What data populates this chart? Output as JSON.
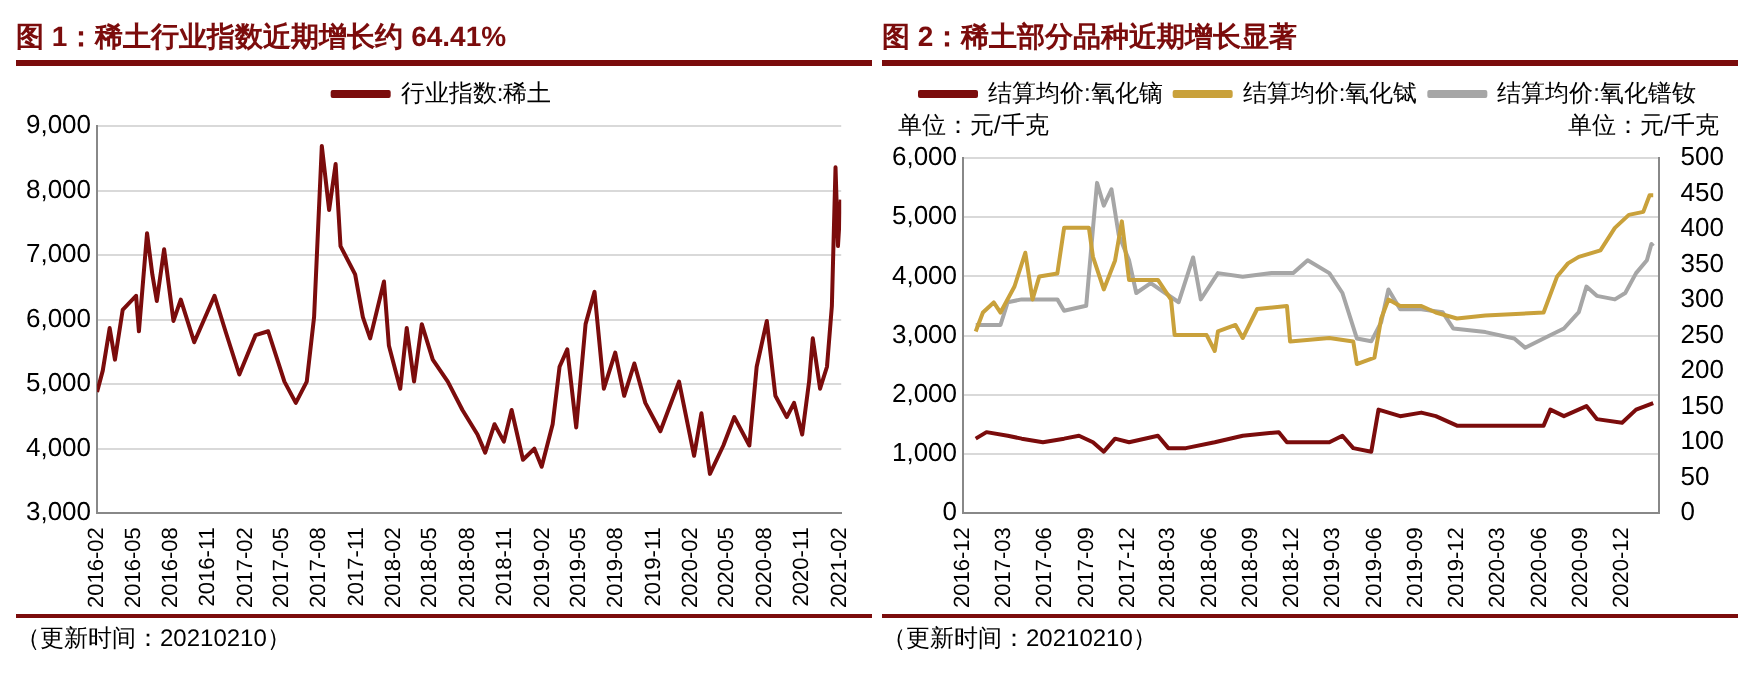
{
  "chart_data": [
    {
      "type": "line",
      "title": "图 1：稀土行业指数近期增长约 64.41%",
      "legend": "top",
      "grid": "y",
      "marker": "none",
      "annotations": [
        "（更新时间：20210210）"
      ],
      "xlim": [
        "2016-02-01",
        "2021-02-05"
      ],
      "xticks": [
        "2016-02",
        "2016-05",
        "2016-08",
        "2016-11",
        "2017-02",
        "2017-05",
        "2017-08",
        "2017-11",
        "2018-02",
        "2018-05",
        "2018-08",
        "2018-11",
        "2019-02",
        "2019-05",
        "2019-08",
        "2019-11",
        "2020-02",
        "2020-05",
        "2020-08",
        "2020-11",
        "2021-02"
      ],
      "ylim": [
        3000,
        9000
      ],
      "yticks": [
        {
          "value": 3000,
          "label": "3,000"
        },
        {
          "value": 4000,
          "label": "4,000"
        },
        {
          "value": 5000,
          "label": "5,000"
        },
        {
          "value": 6000,
          "label": "6,000"
        },
        {
          "value": 7000,
          "label": "7,000"
        },
        {
          "value": 8000,
          "label": "8,000"
        },
        {
          "value": 9000,
          "label": "9,000"
        }
      ],
      "series": [
        {
          "name": "行业指数:稀土",
          "color": "#7b0c0c",
          "x": [
            "2016-02-01",
            "2016-02-15",
            "2016-03-03",
            "2016-03-16",
            "2016-04-04",
            "2016-05-07",
            "2016-05-14",
            "2016-06-03",
            "2016-06-16",
            "2016-06-27",
            "2016-07-15",
            "2016-08-07",
            "2016-08-25",
            "2016-09-27",
            "2016-11-16",
            "2016-12-13",
            "2017-01-16",
            "2017-02-25",
            "2017-03-28",
            "2017-05-07",
            "2017-06-04",
            "2017-07-01",
            "2017-07-19",
            "2017-08-07",
            "2017-08-25",
            "2017-09-10",
            "2017-09-22",
            "2017-10-28",
            "2017-11-16",
            "2017-12-04",
            "2018-01-07",
            "2018-01-19",
            "2018-02-16",
            "2018-03-04",
            "2018-03-22",
            "2018-04-10",
            "2018-05-07",
            "2018-06-13",
            "2018-07-19",
            "2018-08-25",
            "2018-09-13",
            "2018-10-06",
            "2018-10-29",
            "2018-11-17",
            "2018-12-15",
            "2019-01-12",
            "2019-01-30",
            "2019-02-26",
            "2019-03-15",
            "2019-04-03",
            "2019-04-25",
            "2019-05-18",
            "2019-06-09",
            "2019-07-02",
            "2019-07-30",
            "2019-08-21",
            "2019-09-15",
            "2019-10-12",
            "2019-11-18",
            "2020-01-03",
            "2020-02-09",
            "2020-02-27",
            "2020-03-19",
            "2020-04-21",
            "2020-05-18",
            "2020-06-24",
            "2020-07-12",
            "2020-08-06",
            "2020-08-27",
            "2020-09-24",
            "2020-10-12",
            "2020-11-01",
            "2020-11-18",
            "2020-11-27",
            "2020-12-15",
            "2021-01-01",
            "2021-01-13",
            "2021-01-22",
            "2021-01-28",
            "2021-02-04"
          ],
          "values": [
            4880,
            5210,
            5870,
            5380,
            6150,
            6370,
            5820,
            7340,
            6700,
            6290,
            7090,
            5980,
            6310,
            5650,
            6370,
            5820,
            5150,
            5760,
            5820,
            5040,
            4710,
            5040,
            6040,
            8690,
            7700,
            8410,
            7140,
            6700,
            6040,
            5710,
            6590,
            5600,
            4930,
            5870,
            5040,
            5930,
            5380,
            5040,
            4600,
            4220,
            3940,
            4380,
            4110,
            4600,
            3830,
            4000,
            3720,
            4380,
            5270,
            5540,
            4330,
            5930,
            6430,
            4930,
            5490,
            4820,
            5320,
            4710,
            4270,
            5040,
            3890,
            4550,
            3610,
            4050,
            4490,
            4050,
            5270,
            5980,
            4820,
            4490,
            4710,
            4220,
            5040,
            5710,
            4930,
            5270,
            6210,
            8360,
            7140,
            7860
          ]
        }
      ]
    },
    {
      "type": "line",
      "title": "图 2：稀土部分品种近期增长显著",
      "legend": "top",
      "grid": "y",
      "marker": "none",
      "annotations": [
        "（更新时间：20210210）"
      ],
      "ylabel": "单位：元/千克",
      "y2label": "单位：元/千克",
      "xlim": [
        "2016-12-01",
        "2021-02-20"
      ],
      "xticks": [
        "2016-12",
        "2017-03",
        "2017-06",
        "2017-09",
        "2017-12",
        "2018-03",
        "2018-06",
        "2018-09",
        "2018-12",
        "2019-03",
        "2019-06",
        "2019-09",
        "2019-12",
        "2020-03",
        "2020-06",
        "2020-09",
        "2020-12"
      ],
      "ylim": [
        0,
        6000
      ],
      "yticks": [
        0,
        {
          "value": 1000,
          "label": "1,000"
        },
        {
          "value": 2000,
          "label": "2,000"
        },
        {
          "value": 3000,
          "label": "3,000"
        },
        {
          "value": 4000,
          "label": "4,000"
        },
        {
          "value": 5000,
          "label": "5,000"
        },
        {
          "value": 6000,
          "label": "6,000"
        }
      ],
      "y2lim": [
        0,
        500
      ],
      "y2ticks": [
        0,
        50,
        100,
        150,
        200,
        250,
        300,
        350,
        400,
        450,
        500
      ],
      "series": [
        {
          "name": "结算均价:氧化镝",
          "color": "#7b0c0c",
          "x": [
            "2016-12-29",
            "2017-01-22",
            "2017-03-10",
            "2017-04-10",
            "2017-05-27",
            "2017-07-13",
            "2017-08-15",
            "2017-09-15",
            "2017-10-09",
            "2017-11-03",
            "2017-12-04",
            "2018-02-06",
            "2018-03-01",
            "2018-04-09",
            "2018-06-12",
            "2018-08-13",
            "2018-11-01",
            "2018-11-19",
            "2019-02-21",
            "2019-03-22",
            "2019-04-15",
            "2019-05-25",
            "2019-06-10",
            "2019-07-28",
            "2019-09-13",
            "2019-10-15",
            "2019-12-01",
            "2020-06-10",
            "2020-06-25",
            "2020-07-25",
            "2020-09-13",
            "2020-10-06",
            "2020-12-01",
            "2021-01-01",
            "2021-02-08"
          ],
          "values": [
            1260,
            1370,
            1310,
            1260,
            1200,
            1260,
            1310,
            1200,
            1040,
            1260,
            1200,
            1310,
            1100,
            1100,
            1200,
            1310,
            1370,
            1200,
            1200,
            1310,
            1100,
            1040,
            1750,
            1640,
            1700,
            1640,
            1480,
            1480,
            1750,
            1640,
            1810,
            1590,
            1530,
            1750,
            1860
          ]
        },
        {
          "name": "结算均价:氧化铽",
          "color": "#c9a13b",
          "x": [
            "2016-12-29",
            "2017-01-14",
            "2017-02-07",
            "2017-02-22",
            "2017-03-25",
            "2017-04-18",
            "2017-05-04",
            "2017-05-19",
            "2017-06-28",
            "2017-07-13",
            "2017-09-06",
            "2017-09-15",
            "2017-10-09",
            "2017-11-03",
            "2017-11-18",
            "2017-12-04",
            "2018-01-05",
            "2018-02-06",
            "2018-03-07",
            "2018-03-15",
            "2018-05-25",
            "2018-06-12",
            "2018-06-19",
            "2018-07-28",
            "2018-08-13",
            "2018-09-14",
            "2018-11-19",
            "2018-11-26",
            "2019-02-21",
            "2019-04-15",
            "2019-04-23",
            "2019-06-01",
            "2019-06-16",
            "2019-07-02",
            "2019-07-28",
            "2019-09-13",
            "2019-10-15",
            "2019-12-01",
            "2020-02-02",
            "2020-06-10",
            "2020-07-10",
            "2020-08-03",
            "2020-08-27",
            "2020-10-14",
            "2020-11-15",
            "2020-12-16",
            "2021-01-17",
            "2021-01-31",
            "2021-02-08"
          ],
          "values": [
            3070,
            3390,
            3560,
            3390,
            3830,
            4400,
            3610,
            4000,
            4050,
            4820,
            4820,
            4330,
            3780,
            4270,
            4930,
            3940,
            3940,
            3940,
            3610,
            3010,
            3010,
            2740,
            3070,
            3180,
            2960,
            3450,
            3500,
            2900,
            2960,
            2900,
            2520,
            2630,
            3290,
            3610,
            3500,
            3500,
            3390,
            3290,
            3340,
            3390,
            4000,
            4220,
            4330,
            4440,
            4820,
            5040,
            5090,
            5370,
            5370
          ]
        },
        {
          "name": "结算均价:氧化镨钕",
          "color": "#a6a6a6",
          "axis": "y2",
          "x": [
            "2016-12-29",
            "2017-02-22",
            "2017-03-10",
            "2017-04-10",
            "2017-06-28",
            "2017-07-13",
            "2017-08-31",
            "2017-09-15",
            "2017-09-24",
            "2017-10-09",
            "2017-10-26",
            "2017-11-11",
            "2017-12-04",
            "2017-12-20",
            "2018-01-21",
            "2018-02-22",
            "2018-03-24",
            "2018-04-25",
            "2018-05-12",
            "2018-06-19",
            "2018-08-13",
            "2018-10-16",
            "2018-12-03",
            "2019-01-04",
            "2019-02-21",
            "2019-03-22",
            "2019-04-23",
            "2019-05-25",
            "2019-06-16",
            "2019-07-02",
            "2019-07-28",
            "2019-09-13",
            "2019-10-30",
            "2019-11-23",
            "2020-02-02",
            "2020-04-06",
            "2020-04-30",
            "2020-06-10",
            "2020-07-25",
            "2020-08-27",
            "2020-09-13",
            "2020-10-06",
            "2020-11-15",
            "2020-12-08",
            "2021-01-01",
            "2021-01-25",
            "2021-02-04",
            "2021-02-08"
          ],
          "values": [
            265,
            265,
            297,
            301,
            301,
            285,
            292,
            401,
            465,
            433,
            456,
            392,
            356,
            310,
            324,
            310,
            297,
            360,
            301,
            338,
            333,
            338,
            338,
            356,
            338,
            310,
            246,
            242,
            269,
            315,
            287,
            287,
            283,
            260,
            255,
            246,
            233,
            246,
            260,
            283,
            319,
            306,
            301,
            310,
            338,
            356,
            379,
            376
          ]
        }
      ]
    }
  ]
}
